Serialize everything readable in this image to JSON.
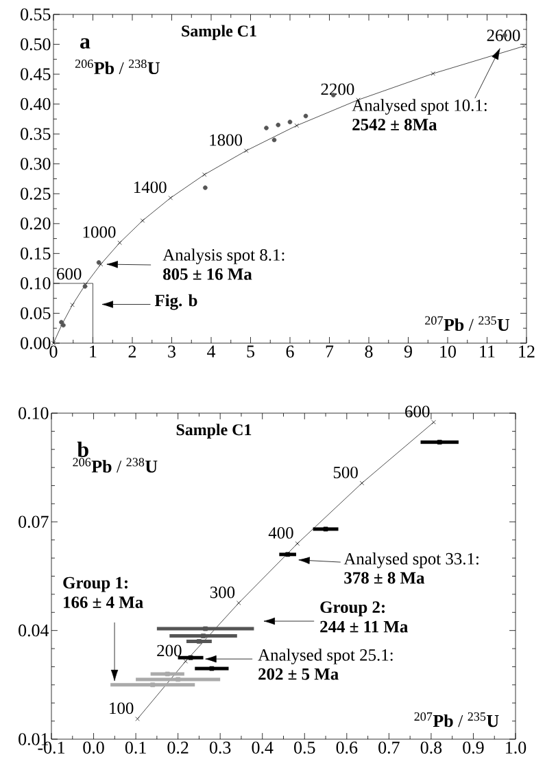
{
  "chart_data": [
    {
      "type": "scatter",
      "title": "Sample C1",
      "xlabel": "$^{207}$**Pb** / $^{235}$**U**",
      "ylabel": "$^{206}$**Pb** / $^{238}$**U**",
      "xlim": [
        0,
        12
      ],
      "ylim": [
        0,
        0.55
      ],
      "xticks": [
        0,
        1,
        2,
        3,
        4,
        5,
        6,
        7,
        8,
        9,
        10,
        11,
        12
      ],
      "yticks": [
        {
          "value": 0,
          "label": "0.00"
        },
        0.05,
        {
          "value": 0.1,
          "label": "0.10"
        },
        0.15,
        {
          "value": 0.2,
          "label": "0.20"
        },
        0.25,
        {
          "value": 0.3,
          "label": "0.30"
        },
        0.35,
        {
          "value": 0.4,
          "label": "0.40"
        },
        0.45,
        {
          "value": 0.5,
          "label": "0.50"
        },
        0.55
      ],
      "series": [
        {
          "type": "line",
          "marker": "cross",
          "color": "#000000",
          "x": [
            0,
            0.22,
            0.48,
            0.81,
            1.2,
            1.68,
            2.26,
            2.97,
            3.83,
            4.89,
            6.17,
            7.73,
            9.63,
            11.94
          ],
          "values": [
            0,
            0.032,
            0.064,
            0.098,
            0.132,
            0.168,
            0.205,
            0.243,
            0.282,
            0.322,
            0.364,
            0.407,
            0.451,
            0.497
          ]
        },
        {
          "type": "line",
          "marker": "none",
          "color": "#000000",
          "x": [
            0,
            1,
            1
          ],
          "values": [
            0.1,
            0.1,
            0
          ]
        },
        {
          "marker": "circle",
          "color": "#555555",
          "x": [
            11.45,
            7.1,
            5.4,
            5.7,
            6.0,
            6.4,
            5.6,
            3.85,
            1.15,
            0.8,
            0.25,
            0.2
          ],
          "values": [
            0.515,
            0.415,
            0.36,
            0.365,
            0.37,
            0.38,
            0.34,
            0.26,
            0.135,
            0.095,
            0.03,
            0.035
          ]
        }
      ],
      "annotations": [
        "a",
        "Analysed spot 10.1:",
        "2542 ± 8Ma",
        "Analysis spot 8.1:",
        "805 ± 16 Ma",
        "Fig. b",
        {
          "text": "600",
          "x": 0.81,
          "y": 0.098
        },
        {
          "text": "1000",
          "x": 1.68,
          "y": 0.168
        },
        {
          "text": "1400",
          "x": 2.97,
          "y": 0.243
        },
        {
          "text": "1800",
          "x": 4.89,
          "y": 0.322
        },
        {
          "text": "2200",
          "x": 7.73,
          "y": 0.407
        },
        {
          "text": "2600",
          "x": 11.94,
          "y": 0.497
        }
      ]
    },
    {
      "type": "scatter",
      "title": "Sample C1",
      "xlabel": "$^{207}$**Pb** / $^{235}$**U**",
      "ylabel": "$^{206}$**Pb** / $^{238}$**U**",
      "xlim": [
        -0.1,
        1.0
      ],
      "ylim": [
        0.01,
        0.1
      ],
      "xticks": [
        -0.1,
        {
          "value": 0,
          "label": "0.0"
        },
        0.1,
        0.2,
        0.3,
        0.4,
        0.5,
        0.6,
        0.7,
        0.8,
        0.9,
        {
          "value": 1.0,
          "label": "1.0"
        }
      ],
      "yticks": [
        0.01,
        0.04,
        0.07,
        {
          "value": 0.1,
          "label": "0.10"
        }
      ],
      "series": [
        {
          "type": "line",
          "marker": "cross",
          "color": "#000000",
          "x": [
            0.104,
            0.218,
            0.344,
            0.483,
            0.636,
            0.806
          ],
          "values": [
            0.0156,
            0.0315,
            0.0476,
            0.064,
            0.0807,
            0.0975
          ]
        },
        {
          "marker": "square",
          "color": "#555555",
          "x": [
            0.265,
            0.26,
            0.25
          ],
          "values": [
            0.0405,
            0.0385,
            0.037
          ],
          "xerrors": [
            0.115,
            0.08,
            0.03
          ]
        },
        {
          "marker": "square",
          "color": "#aaaaaa",
          "x": [
            0.14,
            0.2,
            0.175
          ],
          "values": [
            0.025,
            0.0265,
            0.028
          ],
          "xerrors": [
            0.1,
            0.1,
            0.04
          ]
        },
        {
          "marker": "square",
          "color": "#000000",
          "x": [
            0.23,
            0.28,
            0.82,
            0.55,
            0.46
          ],
          "values": [
            0.0325,
            0.0295,
            0.092,
            0.068,
            0.061
          ],
          "xerrors": [
            0.03,
            0.04,
            0.045,
            0.03,
            0.02
          ]
        }
      ],
      "annotations": [
        "b",
        "Analysed spot 33.1:",
        "378 ± 8 Ma",
        "Group 2:",
        "244 ± 11 Ma",
        "Analysed spot 25.1:",
        "202 ± 5 Ma",
        "Group 1:",
        "166 ± 4 Ma",
        {
          "text": "100",
          "x": 0.104,
          "y": 0.0156
        },
        {
          "text": "200",
          "x": 0.218,
          "y": 0.0315
        },
        {
          "text": "300",
          "x": 0.344,
          "y": 0.0476
        },
        {
          "text": "400",
          "x": 0.483,
          "y": 0.064
        },
        {
          "text": "500",
          "x": 0.636,
          "y": 0.0807
        },
        {
          "text": "600",
          "x": 0.806,
          "y": 0.0975
        }
      ]
    }
  ]
}
